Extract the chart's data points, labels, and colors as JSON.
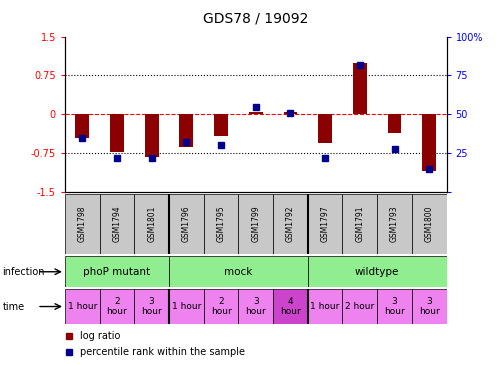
{
  "title": "GDS78 / 19092",
  "samples": [
    "GSM1798",
    "GSM1794",
    "GSM1801",
    "GSM1796",
    "GSM1795",
    "GSM1799",
    "GSM1792",
    "GSM1797",
    "GSM1791",
    "GSM1793",
    "GSM1800"
  ],
  "log_ratio": [
    -0.45,
    -0.72,
    -0.82,
    -0.62,
    -0.42,
    0.04,
    0.05,
    -0.55,
    1.0,
    -0.35,
    -1.1
  ],
  "percentile": [
    35,
    22,
    22,
    32,
    30,
    55,
    51,
    22,
    82,
    28,
    15
  ],
  "ylim": [
    -1.5,
    1.5
  ],
  "yticks_left": [
    -1.5,
    -0.75,
    0,
    0.75,
    1.5
  ],
  "yticks_right": [
    0,
    25,
    50,
    75,
    100
  ],
  "bar_color": "#8B0000",
  "dot_color": "#00008B",
  "gsm_bg": "#c8c8c8",
  "inf_color": "#90ee90",
  "time_color_normal": "#ee82ee",
  "time_color_special": "#cc44cc",
  "infection_groups": [
    {
      "label": "phoP mutant",
      "start": 0,
      "end": 3
    },
    {
      "label": "mock",
      "start": 3,
      "end": 7
    },
    {
      "label": "wildtype",
      "start": 7,
      "end": 11
    }
  ],
  "time_cells": [
    {
      "col": 0,
      "label": "1 hour",
      "special": false
    },
    {
      "col": 1,
      "label": "2\nhour",
      "special": false
    },
    {
      "col": 2,
      "label": "3\nhour",
      "special": false
    },
    {
      "col": 3,
      "label": "1 hour",
      "special": false
    },
    {
      "col": 4,
      "label": "2\nhour",
      "special": false
    },
    {
      "col": 5,
      "label": "3\nhour",
      "special": false
    },
    {
      "col": 6,
      "label": "4\nhour",
      "special": true
    },
    {
      "col": 7,
      "label": "1 hour",
      "special": false
    },
    {
      "col": 8,
      "label": "2 hour",
      "special": false
    },
    {
      "col": 9,
      "label": "3\nhour",
      "special": false
    },
    {
      "col": 10,
      "label": "3\nhour",
      "special": false
    }
  ]
}
